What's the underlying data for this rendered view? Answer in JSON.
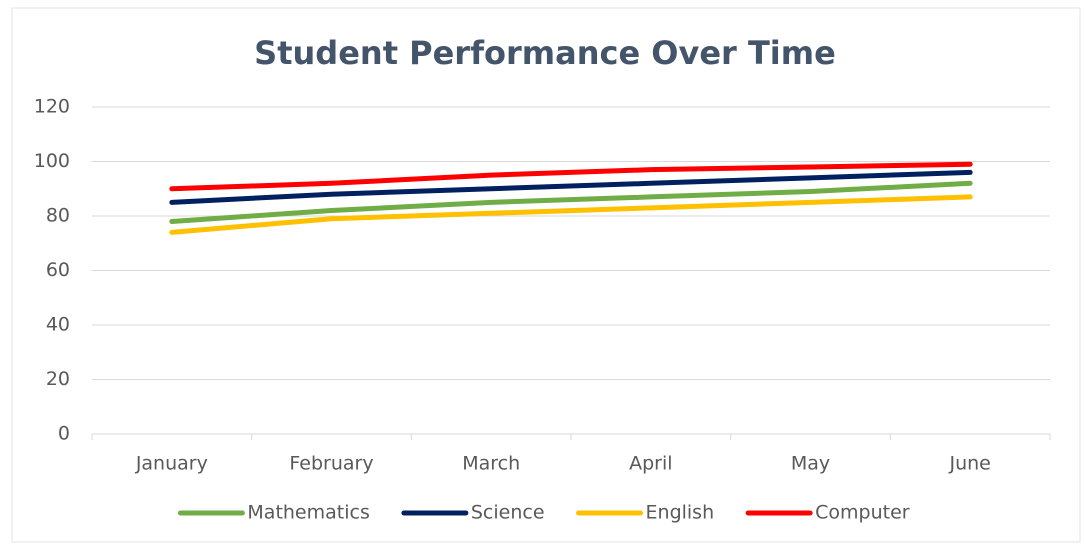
{
  "chart_data": {
    "type": "line",
    "title": "Student Performance Over Time",
    "categories": [
      "January",
      "February",
      "March",
      "April",
      "May",
      "June"
    ],
    "series": [
      {
        "name": "Mathematics",
        "color": "#70ad47",
        "values": [
          78,
          82,
          85,
          87,
          89,
          92
        ]
      },
      {
        "name": "Science",
        "color": "#002060",
        "values": [
          85,
          88,
          90,
          92,
          94,
          96
        ]
      },
      {
        "name": "English",
        "color": "#ffc000",
        "values": [
          74,
          79,
          81,
          83,
          85,
          87
        ]
      },
      {
        "name": "Computer",
        "color": "#ff0000",
        "values": [
          90,
          92,
          95,
          97,
          98,
          99
        ]
      }
    ],
    "ylim": [
      0,
      120
    ],
    "yticks": [
      0,
      20,
      40,
      60,
      80,
      100,
      120
    ],
    "grid": true,
    "legend": "bottom"
  }
}
